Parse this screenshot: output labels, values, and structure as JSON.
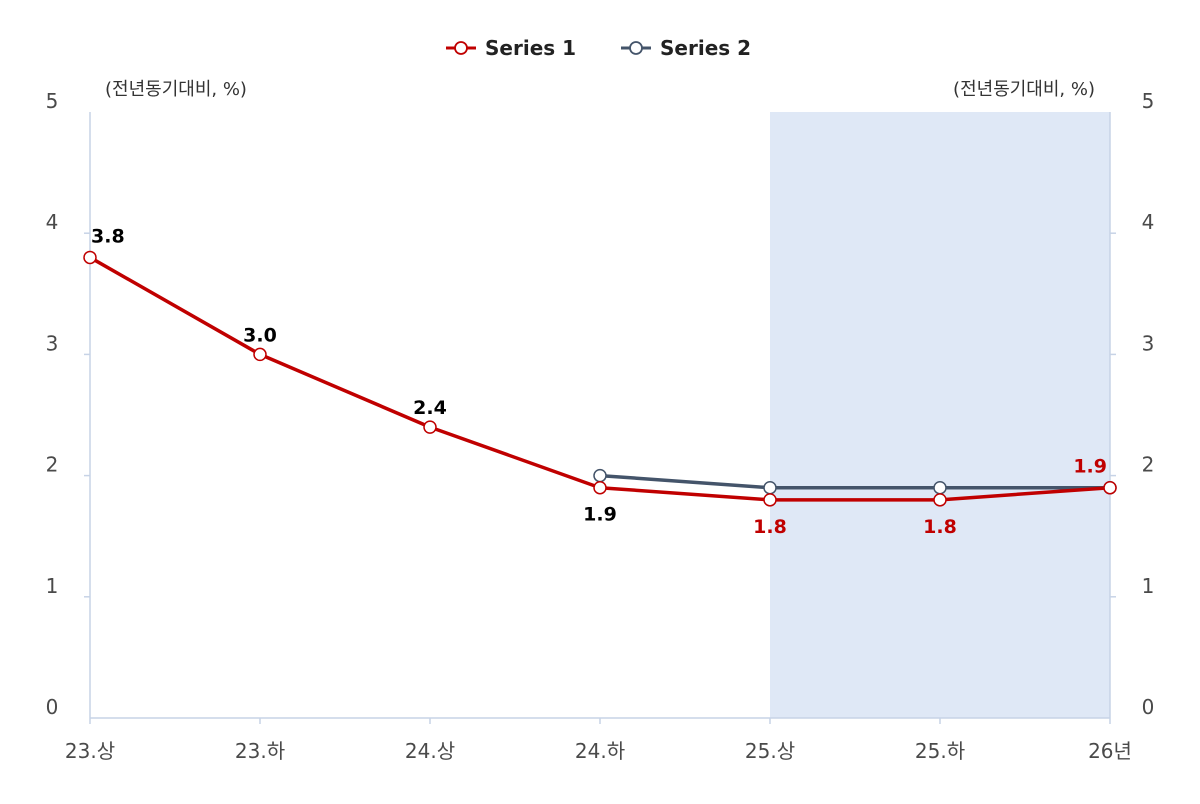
{
  "chart_data": {
    "type": "line",
    "categories": [
      "23.상",
      "23.하",
      "24.상",
      "24.하",
      "25.상",
      "25.하",
      "26년"
    ],
    "series": [
      {
        "name": "Series 1",
        "values": [
          3.8,
          3.0,
          2.4,
          1.9,
          1.8,
          1.8,
          1.9
        ],
        "color": "#c00000",
        "labels": [
          {
            "index": 0,
            "text": "3.8",
            "pos": "above",
            "color": "#000000"
          },
          {
            "index": 1,
            "text": "3.0",
            "pos": "above",
            "color": "#000000"
          },
          {
            "index": 2,
            "text": "2.4",
            "pos": "above",
            "color": "#000000"
          },
          {
            "index": 3,
            "text": "1.9",
            "pos": "below",
            "color": "#000000"
          },
          {
            "index": 4,
            "text": "1.8",
            "pos": "below",
            "color": "#c00000"
          },
          {
            "index": 5,
            "text": "1.8",
            "pos": "below",
            "color": "#c00000"
          },
          {
            "index": 6,
            "text": "1.9",
            "pos": "above",
            "color": "#c00000"
          }
        ]
      },
      {
        "name": "Series 2",
        "values": [
          null,
          null,
          null,
          2.0,
          1.9,
          1.9,
          1.9
        ],
        "color": "#44546a"
      }
    ],
    "y_left_ticks": [
      "0",
      "1",
      "2",
      "3",
      "4",
      "5"
    ],
    "y_right_ticks": [
      "0",
      "1",
      "2",
      "3",
      "4",
      "5"
    ],
    "ylim": [
      0,
      5
    ],
    "unit_left": "(전년동기대비, %)",
    "unit_right": "(전년동기대비, %)",
    "shaded_range": {
      "from": "25.상",
      "to": "26년",
      "color": "#dfe8f6"
    },
    "legend_position": "top-center",
    "grid": false,
    "axis_color": "#c7d3e6"
  }
}
